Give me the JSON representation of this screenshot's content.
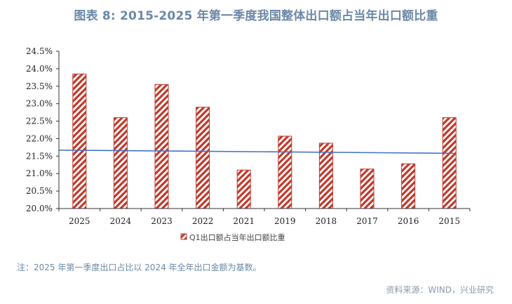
{
  "chart_data": {
    "type": "bar",
    "title": "图表 8:  2015-2025 年第一季度我国整体出口额占当年出口额比重",
    "categories": [
      "2025",
      "2024",
      "2023",
      "2022",
      "2021",
      "2019",
      "2018",
      "2017",
      "2016",
      "2015"
    ],
    "series": [
      {
        "name": "Q1出口额占当年出口额比重",
        "type": "bar",
        "values": [
          23.85,
          22.6,
          23.55,
          22.9,
          21.1,
          22.07,
          21.87,
          21.13,
          21.28,
          22.6
        ]
      }
    ],
    "reference_line": {
      "type": "line",
      "color": "#4472c4",
      "start": 21.67,
      "end": 21.58
    },
    "y_ticks": [
      "24.5%",
      "24.0%",
      "23.5%",
      "23.0%",
      "22.5%",
      "22.0%",
      "21.5%",
      "21.0%",
      "20.5%",
      "20.0%"
    ],
    "ylim": [
      20.0,
      24.5
    ],
    "xlabel": "",
    "ylabel": "",
    "legend_position": "bottom",
    "bar_color": "#c0392b"
  },
  "note": "注：2025 年第一季度出口占比以 2024 年全年出口金额为基数。",
  "source": "资料来源：WIND，兴业研究"
}
